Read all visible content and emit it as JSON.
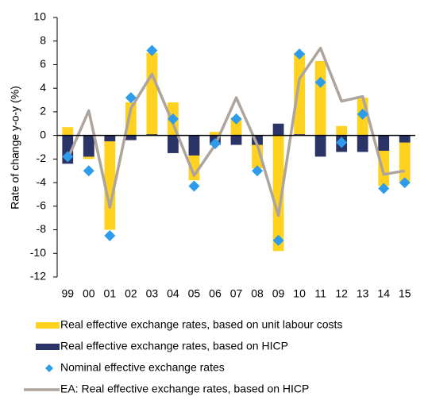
{
  "chart_data": {
    "type": "bar",
    "y_label": "Rate of change y-o-y (%)",
    "categories": [
      "99",
      "00",
      "01",
      "02",
      "03",
      "04",
      "05",
      "06",
      "07",
      "08",
      "09",
      "10",
      "11",
      "12",
      "13",
      "14",
      "15"
    ],
    "series": [
      {
        "name": "Real effective exchange rates, based on unit labour costs",
        "type": "bar",
        "color": "#FFD21F",
        "values": [
          0.7,
          -2.0,
          -8.0,
          2.8,
          7.0,
          2.8,
          -3.8,
          0.3,
          1.5,
          -2.8,
          -9.8,
          7.0,
          6.3,
          0.8,
          3.2,
          -4.3,
          -4.0
        ]
      },
      {
        "name": "Real effective exchange rates, based on HICP",
        "type": "bar",
        "color": "#2B3467",
        "values": [
          -2.4,
          -1.8,
          -0.5,
          -0.4,
          0.1,
          -1.5,
          -1.7,
          -0.8,
          -0.8,
          -0.8,
          1.0,
          0.1,
          -1.8,
          -1.4,
          -1.4,
          -1.3,
          -0.6
        ]
      },
      {
        "name": "Nominal effective exchange rates",
        "type": "scatter",
        "color": "#2E9BEB",
        "values": [
          -1.8,
          -3.0,
          -8.5,
          3.2,
          7.2,
          1.4,
          -4.3,
          -0.7,
          1.4,
          -3.0,
          -8.9,
          6.9,
          4.5,
          -0.6,
          1.8,
          -4.5,
          -4.0
        ]
      },
      {
        "name": "EA: Real effective exchange rates, based on HICP",
        "type": "line",
        "color": "#ADA49E",
        "values": [
          -2.0,
          2.1,
          -6.1,
          2.3,
          5.2,
          1.0,
          -3.4,
          -0.8,
          3.2,
          -0.8,
          -6.8,
          4.8,
          7.4,
          2.9,
          3.3,
          -3.3,
          -3.0
        ]
      }
    ],
    "ylim": [
      -12,
      10
    ],
    "yticks": [
      -12,
      -10,
      -8,
      -6,
      -4,
      -2,
      0,
      2,
      4,
      6,
      8,
      10
    ],
    "grid": false
  }
}
